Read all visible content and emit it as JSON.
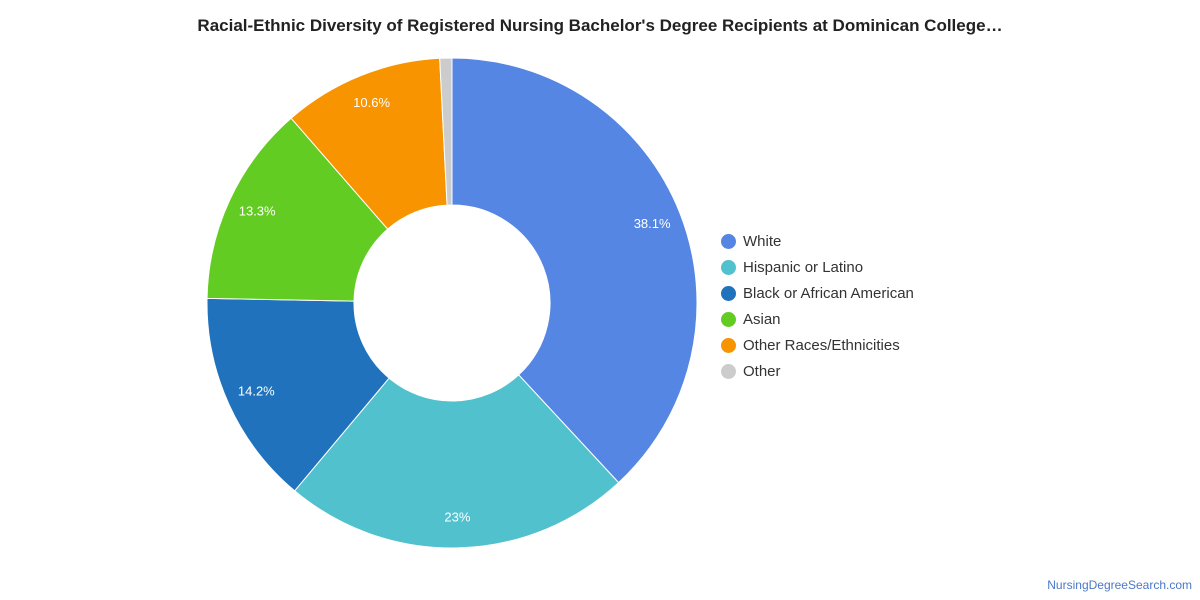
{
  "chart_data": {
    "type": "pie",
    "title": "Racial-Ethnic Diversity of Registered Nursing Bachelor's Degree Recipients at Dominican College…",
    "style": "donut",
    "legend_position": "right",
    "categories": [
      "White",
      "Hispanic or Latino",
      "Black or African American",
      "Asian",
      "Other Races/Ethnicities",
      "Other"
    ],
    "values": [
      38.1,
      23,
      14.2,
      13.3,
      10.6,
      0.8
    ],
    "data_labels": [
      "38.1%",
      "23%",
      "14.2%",
      "13.3%",
      "10.6%",
      ""
    ],
    "colors": [
      "#5586e3",
      "#51c1ce",
      "#1f72bb",
      "#63cc22",
      "#f89400",
      "#cccccc"
    ]
  },
  "footer": {
    "source_link": "NursingDegreeSearch.com"
  }
}
